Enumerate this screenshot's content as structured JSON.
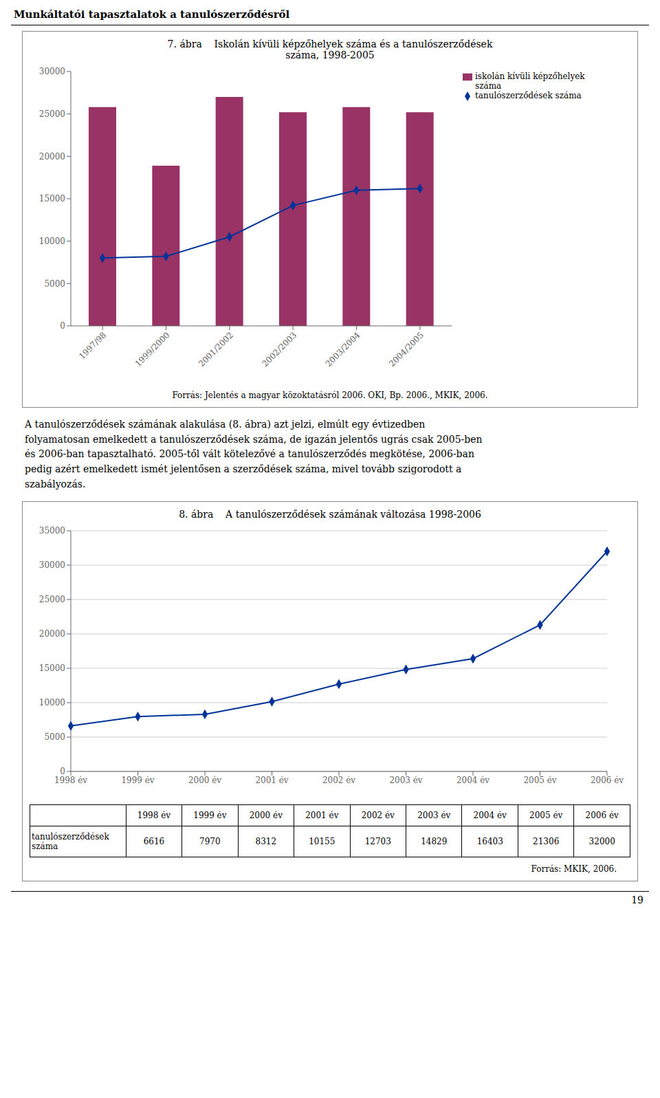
{
  "title": "Munkáltatói tapasztalatok a tanulószerződésről",
  "annotations": [
    "A tanulószerződések számának alakulása (8. ábra) azt jelzi, elmúlt egy évtizedben\nfolyamatosan emelkedett a tanulószerződések száma, de igazán jelentős ugrás csak 2005-ben\nés 2006-ban tapasztalható. 2005-től vált kötelezővé a tanulószerződés megkötése, 2006-ban\npedig azért emelkedett ismét jelentősen a szerződések száma, mivel tovább szigorodott a\nszabályozás."
  ],
  "page_number": 19,
  "chart_data": [
    {
      "type": "bar",
      "title": "7. ábra    Iskolán kívüli képzőhelyek száma és a tanulószerződések\nszáma, 1998-2005",
      "categories": [
        "1997/98",
        "1999/2000",
        "2001/2002",
        "2002/2003",
        "2003/2004",
        "2004/2005"
      ],
      "series": [
        {
          "name": "iskolán kívüli képzőhelyek\nszáma",
          "type": "bar",
          "color": "#993366",
          "values": [
            25800,
            18900,
            27000,
            25200,
            25800,
            25200
          ]
        },
        {
          "name": "tanulószerződések száma",
          "type": "line",
          "color": "#003399",
          "marker": "diamond",
          "values": [
            8000,
            8200,
            10500,
            14200,
            16000,
            16200
          ]
        }
      ],
      "ylim": [
        0,
        30000
      ],
      "yticks": [
        0,
        5000,
        10000,
        15000,
        20000,
        25000,
        30000
      ],
      "grid": false,
      "legend": "right",
      "annotations": [
        "Forrás: Jelentés a magyar közoktatásról 2006. OKI, Bp. 2006., MKIK, 2006."
      ]
    },
    {
      "type": "line",
      "title": "8. ábra    A tanulószerződések számának változása 1998-2006",
      "categories": [
        "1998 év",
        "1999 év",
        "2000 év",
        "2001 év",
        "2002 év",
        "2003 év",
        "2004 év",
        "2005 év",
        "2006 év"
      ],
      "values": [
        6616,
        7970,
        8312,
        10155,
        12703,
        14829,
        16403,
        21306,
        32000
      ],
      "color": "#003399",
      "marker": "diamond",
      "ylim": [
        0,
        35000
      ],
      "yticks": [
        0,
        5000,
        10000,
        15000,
        20000,
        25000,
        30000,
        35000
      ],
      "grid": true,
      "table_row_label": "tanulószerződések száma",
      "annotations": [
        "Forrás: MKIK, 2006."
      ]
    }
  ]
}
